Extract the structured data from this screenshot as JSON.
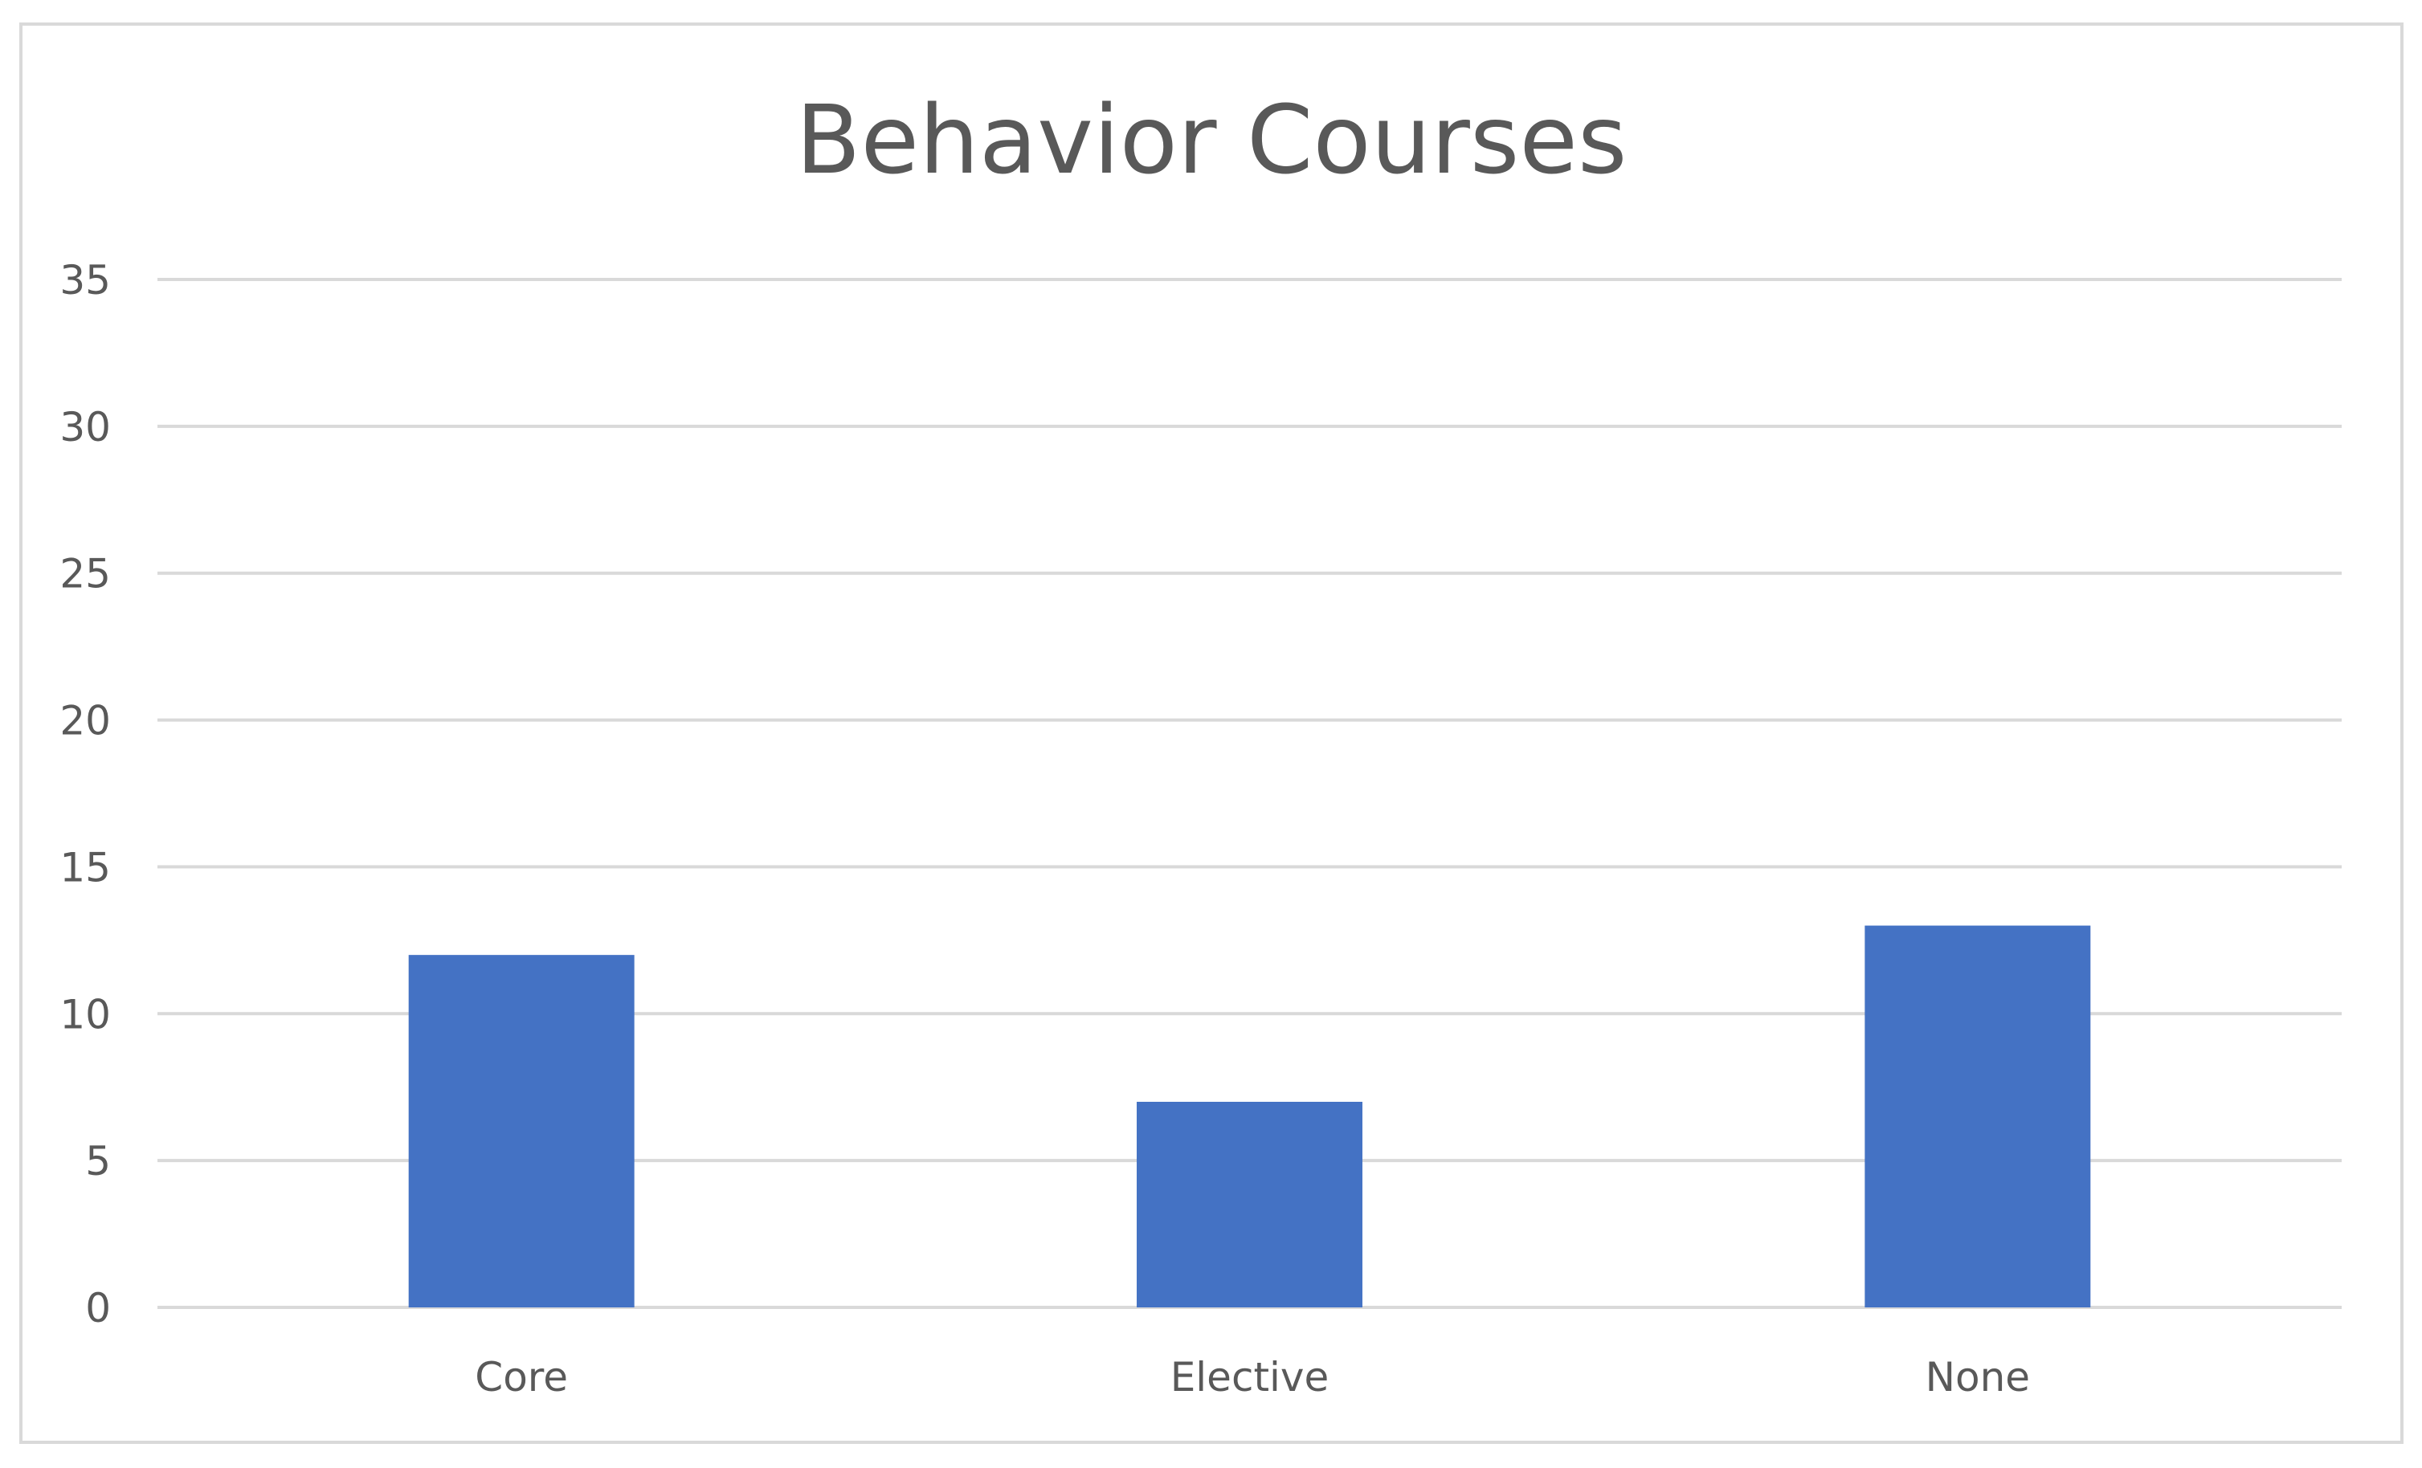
{
  "chart_data": {
    "type": "bar",
    "title": "Behavior Courses",
    "categories": [
      "Core",
      "Elective",
      "None"
    ],
    "values": [
      12,
      7,
      13
    ],
    "xlabel": "",
    "ylabel": "",
    "ylim": [
      0,
      35
    ],
    "yticks": [
      0,
      5,
      10,
      15,
      20,
      25,
      30,
      35
    ],
    "grid": true,
    "legend": "none",
    "bar_color": "#4472c4"
  }
}
